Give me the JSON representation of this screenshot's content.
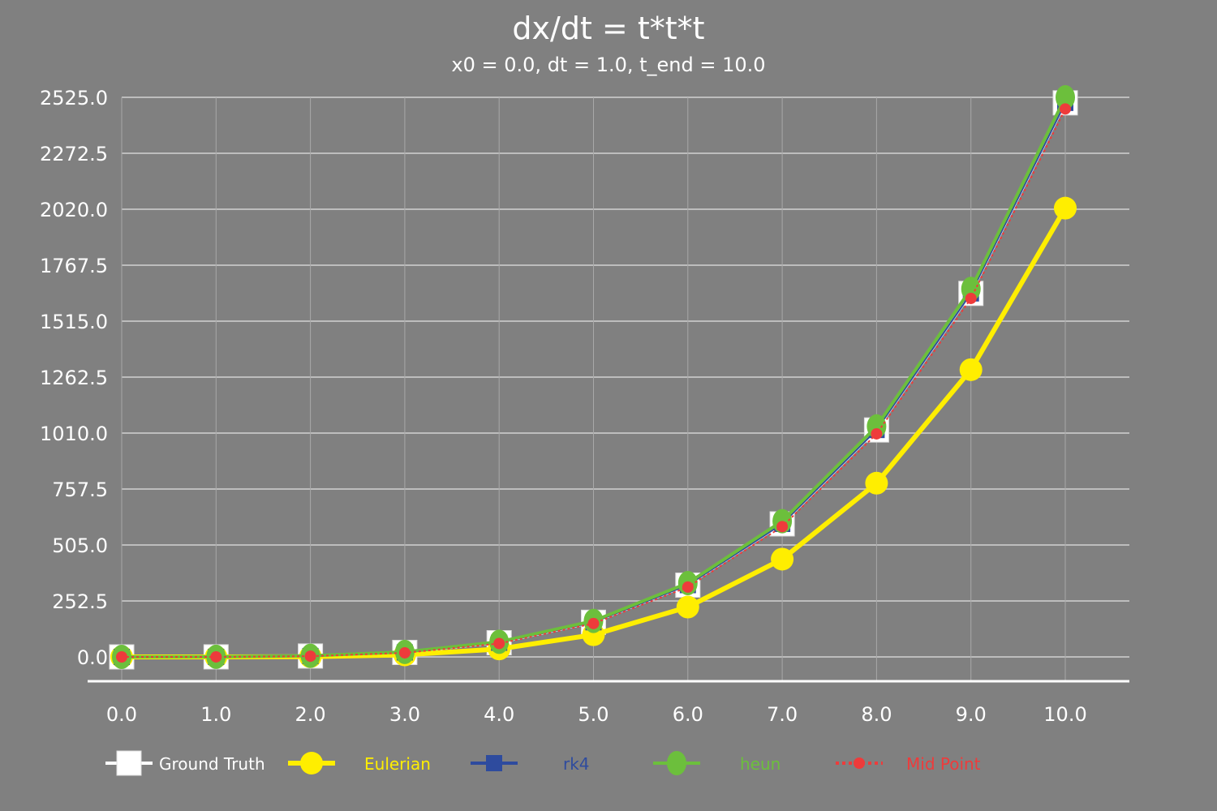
{
  "chart_data": {
    "type": "line",
    "title": "dx/dt = t*t*t",
    "subtitle": "x0 = 0.0, dt = 1.0, t_end = 10.0",
    "xlabel": "",
    "ylabel": "",
    "x": [
      0,
      1,
      2,
      3,
      4,
      5,
      6,
      7,
      8,
      9,
      10
    ],
    "x_tick_labels": [
      "0.0",
      "1.0",
      "2.0",
      "3.0",
      "4.0",
      "5.0",
      "6.0",
      "7.0",
      "8.0",
      "9.0",
      "10.0"
    ],
    "y_ticks": [
      0,
      252.5,
      505,
      757.5,
      1010,
      1262.5,
      1515,
      1767.5,
      2020,
      2272.5,
      2525
    ],
    "y_tick_labels": [
      "0.0",
      "252.5",
      "505.0",
      "757.5",
      "1010.0",
      "1262.5",
      "1515.0",
      "1767.5",
      "2020.0",
      "2272.5",
      "2525.0"
    ],
    "ylim": [
      0,
      2525
    ],
    "xlim": [
      0,
      10
    ],
    "grid": true,
    "legend_position": "bottom",
    "background_color": "#808080",
    "series": [
      {
        "name": "Ground Truth",
        "color": "#ffffff",
        "marker": "square",
        "values": [
          0,
          0.25,
          4,
          20.25,
          64,
          156.25,
          324,
          600.25,
          1024,
          1640.25,
          2500
        ]
      },
      {
        "name": "Eulerian",
        "color": "#ffee00",
        "marker": "circle",
        "values": [
          0,
          0,
          1,
          9,
          36,
          100,
          225,
          441,
          784,
          1296,
          2025
        ]
      },
      {
        "name": "rk4",
        "color": "#2e4b9e",
        "marker": "square",
        "values": [
          0,
          0.25,
          4,
          20.25,
          64,
          156.25,
          324,
          600.25,
          1024,
          1640.25,
          2500
        ]
      },
      {
        "name": "heun",
        "color": "#6cbf3c",
        "marker": "circle",
        "values": [
          0,
          0.5,
          5,
          22.5,
          68,
          162.5,
          333,
          612.5,
          1040,
          1660.5,
          2525
        ]
      },
      {
        "name": "Mid Point",
        "color": "#ee3b3b",
        "marker": "dot",
        "dashed": true,
        "values": [
          0,
          0.125,
          3.25,
          18.375,
          60.5,
          150.625,
          315,
          587.875,
          1006.5,
          1617.625,
          2472.5
        ]
      }
    ]
  }
}
